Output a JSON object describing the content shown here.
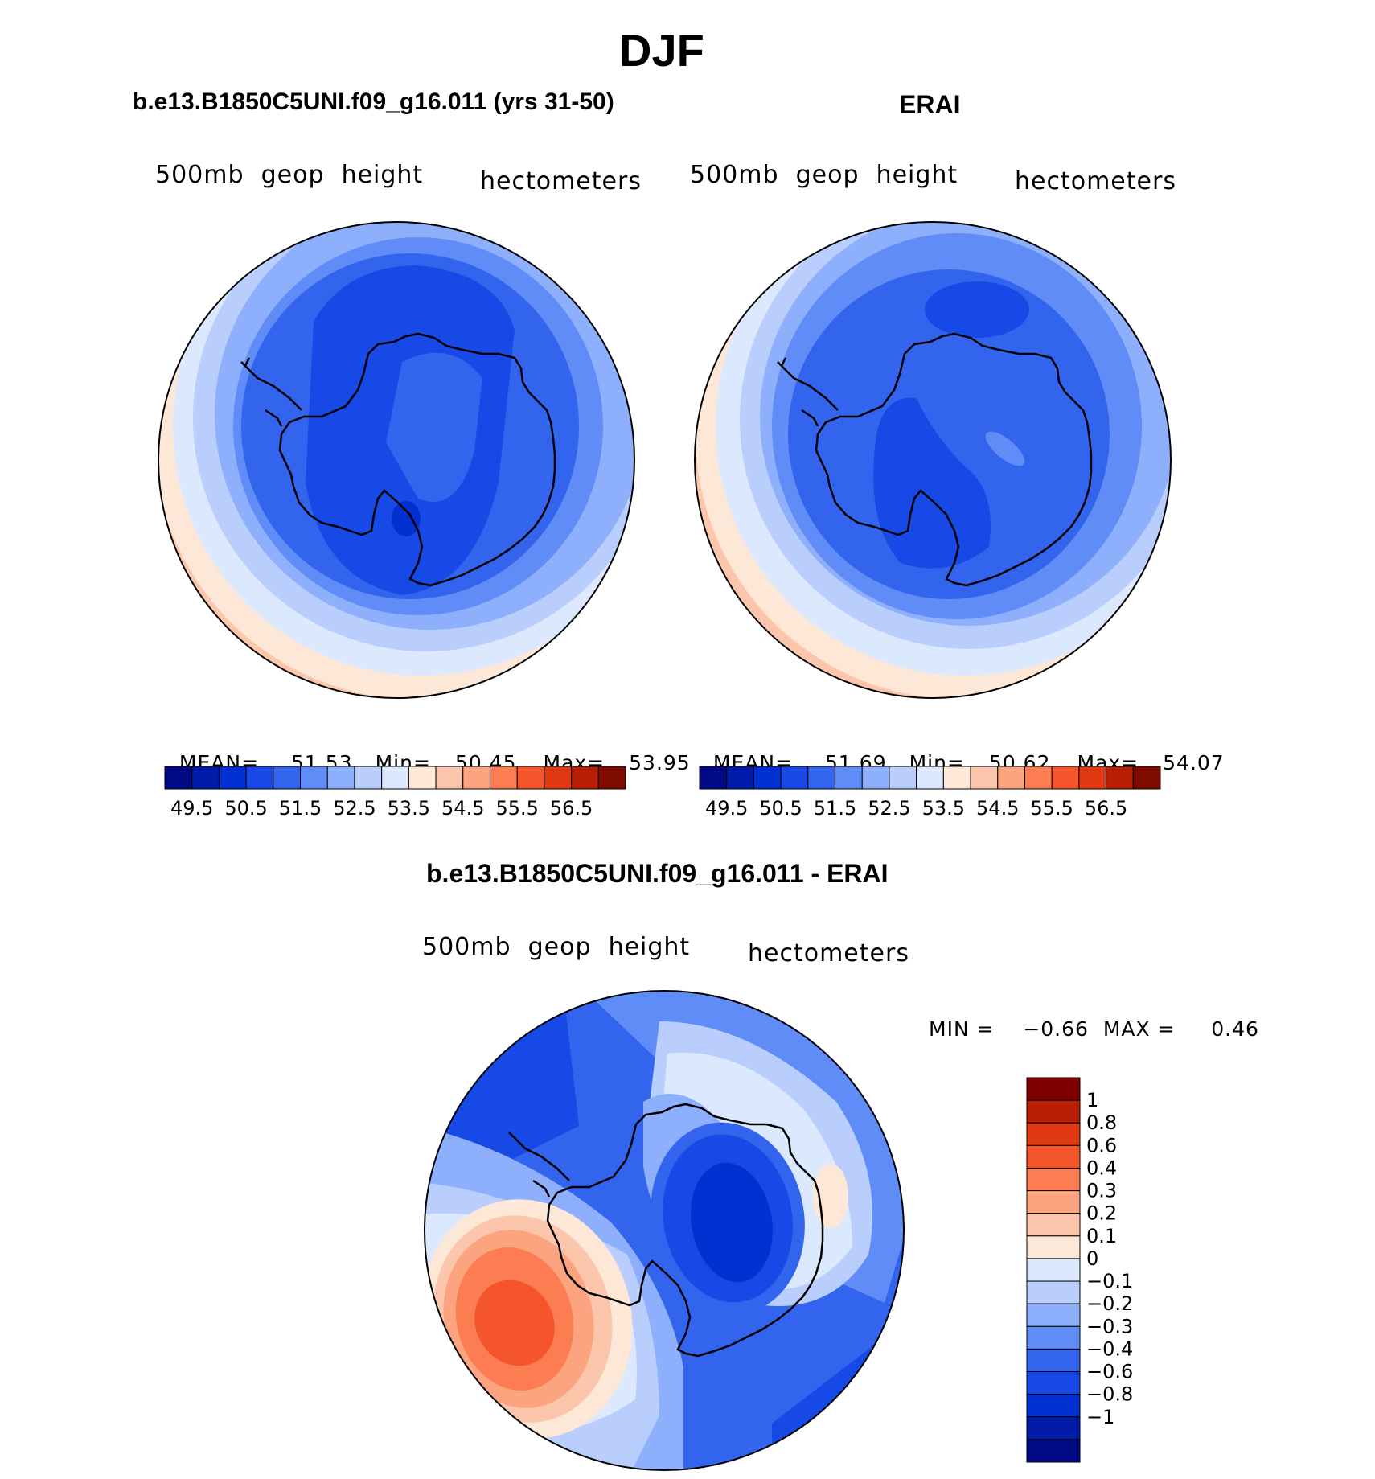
{
  "season": "DJF",
  "panels": [
    {
      "title": "b.e13.B1850C5UNI.f09_g16.011 (yrs 31-50)",
      "left_label": "500mb  geop  height",
      "right_label": "hectometers",
      "stats": {
        "mean_label": "MEAN=",
        "mean": "51.53",
        "min_label": "Min=",
        "min": "50.45",
        "max_label": "Max=",
        "max": "53.95"
      }
    },
    {
      "title": "ERAI",
      "left_label": "500mb  geop  height",
      "right_label": "hectometers",
      "stats": {
        "mean_label": "MEAN=",
        "mean": "51.69",
        "min_label": "Min=",
        "min": "50.62",
        "max_label": "Max=",
        "max": "54.07"
      }
    }
  ],
  "diff_panel": {
    "title": "b.e13.B1850C5UNI.f09_g16.011 - ERAI",
    "left_label": "500mb  geop  height",
    "right_label": "hectometers",
    "minmax_label": "MIN =    −0.66  MAX =     0.46"
  },
  "abs_colorbar": {
    "colors": [
      "#000a82",
      "#001ca8",
      "#0231d2",
      "#1749e6",
      "#3264ee",
      "#5f8cf7",
      "#8eaffb",
      "#b9cefc",
      "#dbe8fd",
      "#fde7d7",
      "#fcc6ac",
      "#fca37f",
      "#fb7d51",
      "#f5552b",
      "#e03a12",
      "#b91f05",
      "#7f0a00"
    ],
    "labels": [
      "49.5",
      "50.5",
      "51.5",
      "52.5",
      "53.5",
      "54.5",
      "55.5",
      "56.5"
    ]
  },
  "diff_colorbar": {
    "colors_top_to_bottom": [
      "#7f0000",
      "#b91f05",
      "#e03a12",
      "#f5552b",
      "#fb7d51",
      "#fca37f",
      "#fcc6ac",
      "#fde7d7",
      "#dbe8fd",
      "#b9cefc",
      "#8eaffb",
      "#5f8cf7",
      "#3264ee",
      "#1749e6",
      "#0231d2",
      "#001ca8",
      "#000a82"
    ],
    "labels_top_to_bottom": [
      "1",
      "0.8",
      "0.6",
      "0.4",
      "0.3",
      "0.2",
      "0.1",
      "0",
      "−0.1",
      "−0.2",
      "−0.3",
      "−0.4",
      "−0.6",
      "−0.8",
      "−1"
    ]
  }
}
